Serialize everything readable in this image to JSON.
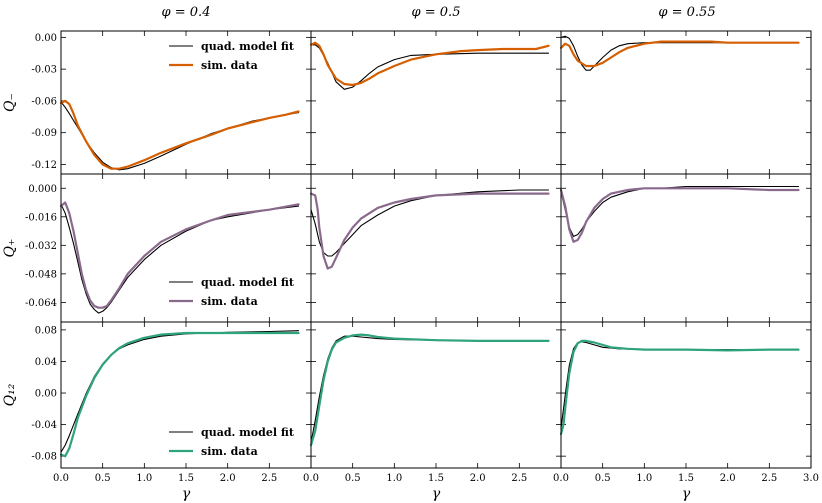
{
  "figure": {
    "column_titles": [
      "φ = 0.4",
      "φ = 0.5",
      "φ = 0.55"
    ],
    "row_labels": [
      "Q₋",
      "Q₊",
      "Q₁₂"
    ],
    "xlabel": "γ",
    "x_ticks": [
      "0.0",
      "0.5",
      "1.0",
      "1.5",
      "2.0",
      "2.5"
    ],
    "x_ticks_last_col": [
      "0.0",
      "0.5",
      "1.0",
      "1.5",
      "2.0",
      "2.5",
      "3.0"
    ],
    "xlim": [
      0,
      3.0
    ],
    "colors": {
      "fit": "#000000",
      "sim_row1": "#d55e00",
      "sim_row2": "#8a6a8c",
      "sim_row3": "#2fa37a"
    }
  },
  "legend": {
    "fit_label": "quad. model fit",
    "sim_label": "sim. data"
  },
  "chart_data": [
    {
      "type": "line",
      "panel": "row1-col1",
      "ylabel": "Q₋",
      "ylim": [
        -0.129,
        0.006
      ],
      "yticks": [
        0.0,
        -0.03,
        -0.06,
        -0.09,
        -0.12
      ],
      "ytick_labels": [
        "0.00",
        "-0.03",
        "-0.06",
        "-0.09",
        "-0.12"
      ],
      "series": [
        {
          "name": "quad. model fit",
          "x": [
            0,
            0.05,
            0.1,
            0.2,
            0.3,
            0.4,
            0.5,
            0.6,
            0.7,
            0.8,
            1.0,
            1.2,
            1.5,
            1.8,
            2.0,
            2.3,
            2.5,
            2.7,
            2.85
          ],
          "y": [
            -0.061,
            -0.066,
            -0.072,
            -0.085,
            -0.098,
            -0.109,
            -0.118,
            -0.123,
            -0.125,
            -0.124,
            -0.119,
            -0.112,
            -0.101,
            -0.091,
            -0.086,
            -0.079,
            -0.076,
            -0.073,
            -0.071
          ]
        },
        {
          "name": "sim. data",
          "x": [
            0,
            0.05,
            0.1,
            0.15,
            0.2,
            0.3,
            0.4,
            0.5,
            0.6,
            0.7,
            0.8,
            1.0,
            1.2,
            1.5,
            1.8,
            2.0,
            2.3,
            2.5,
            2.7,
            2.85
          ],
          "y": [
            -0.062,
            -0.06,
            -0.063,
            -0.072,
            -0.083,
            -0.098,
            -0.111,
            -0.12,
            -0.124,
            -0.124,
            -0.122,
            -0.116,
            -0.109,
            -0.1,
            -0.092,
            -0.086,
            -0.08,
            -0.076,
            -0.073,
            -0.07
          ]
        }
      ]
    },
    {
      "type": "line",
      "panel": "row1-col2",
      "ylim": [
        -0.129,
        0.006
      ],
      "series": [
        {
          "name": "quad. model fit",
          "x": [
            0,
            0.05,
            0.1,
            0.2,
            0.3,
            0.4,
            0.5,
            0.6,
            0.7,
            0.8,
            1.0,
            1.2,
            1.5,
            2.0,
            2.5,
            2.85
          ],
          "y": [
            -0.007,
            -0.007,
            -0.01,
            -0.024,
            -0.042,
            -0.049,
            -0.047,
            -0.041,
            -0.034,
            -0.028,
            -0.021,
            -0.017,
            -0.016,
            -0.015,
            -0.015,
            -0.015
          ]
        },
        {
          "name": "sim. data",
          "x": [
            0,
            0.05,
            0.1,
            0.15,
            0.2,
            0.3,
            0.4,
            0.5,
            0.6,
            0.7,
            0.8,
            1.0,
            1.2,
            1.5,
            1.8,
            2.0,
            2.3,
            2.5,
            2.7,
            2.85
          ],
          "y": [
            -0.007,
            -0.005,
            -0.008,
            -0.016,
            -0.026,
            -0.039,
            -0.044,
            -0.045,
            -0.043,
            -0.039,
            -0.034,
            -0.027,
            -0.021,
            -0.016,
            -0.013,
            -0.012,
            -0.011,
            -0.011,
            -0.011,
            -0.008
          ]
        }
      ]
    },
    {
      "type": "line",
      "panel": "row1-col3",
      "ylim": [
        -0.129,
        0.006
      ],
      "series": [
        {
          "name": "quad. model fit",
          "x": [
            0,
            0.05,
            0.1,
            0.15,
            0.2,
            0.25,
            0.3,
            0.35,
            0.4,
            0.5,
            0.6,
            0.7,
            0.8,
            1.0,
            1.5,
            2.0,
            2.85
          ],
          "y": [
            0.0,
            0.001,
            -0.001,
            -0.008,
            -0.018,
            -0.026,
            -0.031,
            -0.031,
            -0.027,
            -0.019,
            -0.012,
            -0.008,
            -0.006,
            -0.005,
            -0.005,
            -0.005,
            -0.005
          ]
        },
        {
          "name": "sim. data",
          "x": [
            0,
            0.05,
            0.1,
            0.15,
            0.2,
            0.3,
            0.4,
            0.5,
            0.6,
            0.7,
            0.8,
            1.0,
            1.2,
            1.5,
            1.8,
            2.0,
            2.5,
            2.85
          ],
          "y": [
            -0.01,
            -0.006,
            -0.008,
            -0.016,
            -0.022,
            -0.027,
            -0.027,
            -0.024,
            -0.019,
            -0.014,
            -0.01,
            -0.006,
            -0.004,
            -0.004,
            -0.004,
            -0.005,
            -0.005,
            -0.005
          ]
        }
      ]
    },
    {
      "type": "line",
      "panel": "row2-col1",
      "ylabel": "Q₊",
      "ylim": [
        -0.075,
        0.008
      ],
      "yticks": [
        0.0,
        -0.016,
        -0.032,
        -0.048,
        -0.064
      ],
      "ytick_labels": [
        "0.000",
        "-0.016",
        "-0.032",
        "-0.048",
        "-0.064"
      ],
      "series": [
        {
          "name": "quad. model fit",
          "x": [
            0,
            0.05,
            0.1,
            0.15,
            0.2,
            0.25,
            0.3,
            0.35,
            0.4,
            0.45,
            0.5,
            0.55,
            0.6,
            0.7,
            0.8,
            1.0,
            1.2,
            1.5,
            1.8,
            2.0,
            2.5,
            2.85
          ],
          "y": [
            -0.009,
            -0.014,
            -0.022,
            -0.031,
            -0.041,
            -0.051,
            -0.059,
            -0.065,
            -0.068,
            -0.07,
            -0.069,
            -0.067,
            -0.064,
            -0.057,
            -0.05,
            -0.04,
            -0.032,
            -0.024,
            -0.018,
            -0.016,
            -0.012,
            -0.01
          ]
        },
        {
          "name": "sim. data",
          "x": [
            0,
            0.05,
            0.1,
            0.15,
            0.2,
            0.25,
            0.3,
            0.35,
            0.4,
            0.45,
            0.5,
            0.55,
            0.6,
            0.7,
            0.8,
            1.0,
            1.2,
            1.5,
            1.8,
            2.0,
            2.5,
            2.85
          ],
          "y": [
            -0.01,
            -0.008,
            -0.014,
            -0.024,
            -0.036,
            -0.048,
            -0.057,
            -0.063,
            -0.066,
            -0.067,
            -0.067,
            -0.066,
            -0.063,
            -0.056,
            -0.048,
            -0.038,
            -0.03,
            -0.023,
            -0.018,
            -0.015,
            -0.012,
            -0.009
          ]
        }
      ]
    },
    {
      "type": "line",
      "panel": "row2-col2",
      "ylim": [
        -0.075,
        0.008
      ],
      "series": [
        {
          "name": "quad. model fit",
          "x": [
            0,
            0.05,
            0.1,
            0.15,
            0.2,
            0.25,
            0.3,
            0.4,
            0.5,
            0.6,
            0.8,
            1.0,
            1.2,
            1.5,
            2.0,
            2.5,
            2.85
          ],
          "y": [
            -0.012,
            -0.02,
            -0.03,
            -0.036,
            -0.038,
            -0.038,
            -0.036,
            -0.031,
            -0.026,
            -0.021,
            -0.015,
            -0.01,
            -0.007,
            -0.004,
            -0.002,
            -0.001,
            -0.001
          ]
        },
        {
          "name": "sim. data",
          "x": [
            0,
            0.05,
            0.08,
            0.1,
            0.15,
            0.2,
            0.25,
            0.3,
            0.4,
            0.5,
            0.6,
            0.8,
            1.0,
            1.2,
            1.5,
            2.0,
            2.5,
            2.85
          ],
          "y": [
            -0.003,
            -0.004,
            -0.012,
            -0.022,
            -0.038,
            -0.045,
            -0.044,
            -0.039,
            -0.029,
            -0.022,
            -0.017,
            -0.011,
            -0.008,
            -0.006,
            -0.004,
            -0.003,
            -0.003,
            -0.003
          ]
        }
      ]
    },
    {
      "type": "line",
      "panel": "row2-col3",
      "ylim": [
        -0.075,
        0.008
      ],
      "series": [
        {
          "name": "quad. model fit",
          "x": [
            0,
            0.05,
            0.1,
            0.15,
            0.2,
            0.25,
            0.3,
            0.4,
            0.5,
            0.6,
            0.8,
            1.0,
            1.2,
            1.5,
            2.0,
            2.5,
            2.85
          ],
          "y": [
            -0.002,
            -0.012,
            -0.022,
            -0.027,
            -0.026,
            -0.023,
            -0.019,
            -0.013,
            -0.008,
            -0.005,
            -0.002,
            0.0,
            0.0,
            0.001,
            0.001,
            0.001,
            0.001
          ]
        },
        {
          "name": "sim. data",
          "x": [
            0,
            0.05,
            0.1,
            0.15,
            0.2,
            0.25,
            0.3,
            0.4,
            0.5,
            0.6,
            0.8,
            1.0,
            1.2,
            1.5,
            2.0,
            2.5,
            2.85
          ],
          "y": [
            -0.001,
            -0.01,
            -0.023,
            -0.03,
            -0.029,
            -0.025,
            -0.019,
            -0.011,
            -0.006,
            -0.003,
            -0.001,
            0.0,
            0.0,
            0.0,
            0.0,
            -0.001,
            -0.001
          ]
        }
      ]
    },
    {
      "type": "line",
      "panel": "row3-col1",
      "ylabel": "Q₁₂",
      "ylim": [
        -0.095,
        0.09
      ],
      "yticks": [
        0.08,
        0.04,
        0.0,
        -0.04,
        -0.08
      ],
      "ytick_labels": [
        "0.08",
        "0.04",
        "0.00",
        "-0.04",
        "-0.08"
      ],
      "series": [
        {
          "name": "quad. model fit",
          "x": [
            0,
            0.05,
            0.1,
            0.2,
            0.3,
            0.4,
            0.5,
            0.6,
            0.7,
            0.8,
            1.0,
            1.2,
            1.5,
            1.8,
            2.0,
            2.5,
            2.85
          ],
          "y": [
            -0.075,
            -0.066,
            -0.054,
            -0.027,
            -0.001,
            0.021,
            0.037,
            0.048,
            0.056,
            0.061,
            0.068,
            0.072,
            0.075,
            0.076,
            0.077,
            0.078,
            0.079
          ]
        },
        {
          "name": "sim. data",
          "x": [
            0,
            0.05,
            0.1,
            0.15,
            0.2,
            0.3,
            0.4,
            0.5,
            0.6,
            0.7,
            0.8,
            1.0,
            1.2,
            1.5,
            1.8,
            2.0,
            2.5,
            2.85
          ],
          "y": [
            -0.078,
            -0.08,
            -0.07,
            -0.052,
            -0.032,
            -0.004,
            0.019,
            0.036,
            0.048,
            0.057,
            0.063,
            0.07,
            0.074,
            0.076,
            0.076,
            0.076,
            0.076,
            0.076
          ]
        }
      ]
    },
    {
      "type": "line",
      "panel": "row3-col2",
      "ylim": [
        -0.095,
        0.09
      ],
      "series": [
        {
          "name": "quad. model fit",
          "x": [
            0,
            0.05,
            0.1,
            0.15,
            0.2,
            0.25,
            0.3,
            0.4,
            0.5,
            0.6,
            0.8,
            1.0,
            1.5,
            2.0,
            2.5,
            2.85
          ],
          "y": [
            -0.063,
            -0.035,
            -0.005,
            0.022,
            0.043,
            0.057,
            0.066,
            0.072,
            0.072,
            0.071,
            0.069,
            0.068,
            0.067,
            0.066,
            0.066,
            0.066
          ]
        },
        {
          "name": "sim. data",
          "x": [
            0,
            0.05,
            0.1,
            0.15,
            0.2,
            0.25,
            0.3,
            0.4,
            0.5,
            0.6,
            0.7,
            0.8,
            1.0,
            1.5,
            2.0,
            2.5,
            2.85
          ],
          "y": [
            -0.066,
            -0.048,
            -0.016,
            0.016,
            0.04,
            0.055,
            0.064,
            0.07,
            0.073,
            0.074,
            0.073,
            0.071,
            0.069,
            0.067,
            0.066,
            0.066,
            0.066
          ]
        }
      ]
    },
    {
      "type": "line",
      "panel": "row3-col3",
      "ylim": [
        -0.095,
        0.09
      ],
      "series": [
        {
          "name": "quad. model fit",
          "x": [
            0,
            0.03,
            0.06,
            0.1,
            0.15,
            0.2,
            0.25,
            0.3,
            0.4,
            0.5,
            0.7,
            1.0,
            1.5,
            2.0,
            2.5,
            2.85
          ],
          "y": [
            -0.045,
            -0.02,
            0.005,
            0.035,
            0.056,
            0.064,
            0.065,
            0.064,
            0.061,
            0.058,
            0.056,
            0.055,
            0.055,
            0.055,
            0.055,
            0.055
          ]
        },
        {
          "name": "sim. data",
          "x": [
            0,
            0.03,
            0.06,
            0.1,
            0.15,
            0.2,
            0.25,
            0.3,
            0.4,
            0.5,
            0.6,
            0.8,
            1.0,
            1.5,
            2.0,
            2.5,
            2.85
          ],
          "y": [
            -0.052,
            -0.04,
            -0.01,
            0.025,
            0.052,
            0.063,
            0.066,
            0.066,
            0.064,
            0.061,
            0.058,
            0.056,
            0.055,
            0.055,
            0.054,
            0.055,
            0.055
          ]
        }
      ]
    }
  ]
}
